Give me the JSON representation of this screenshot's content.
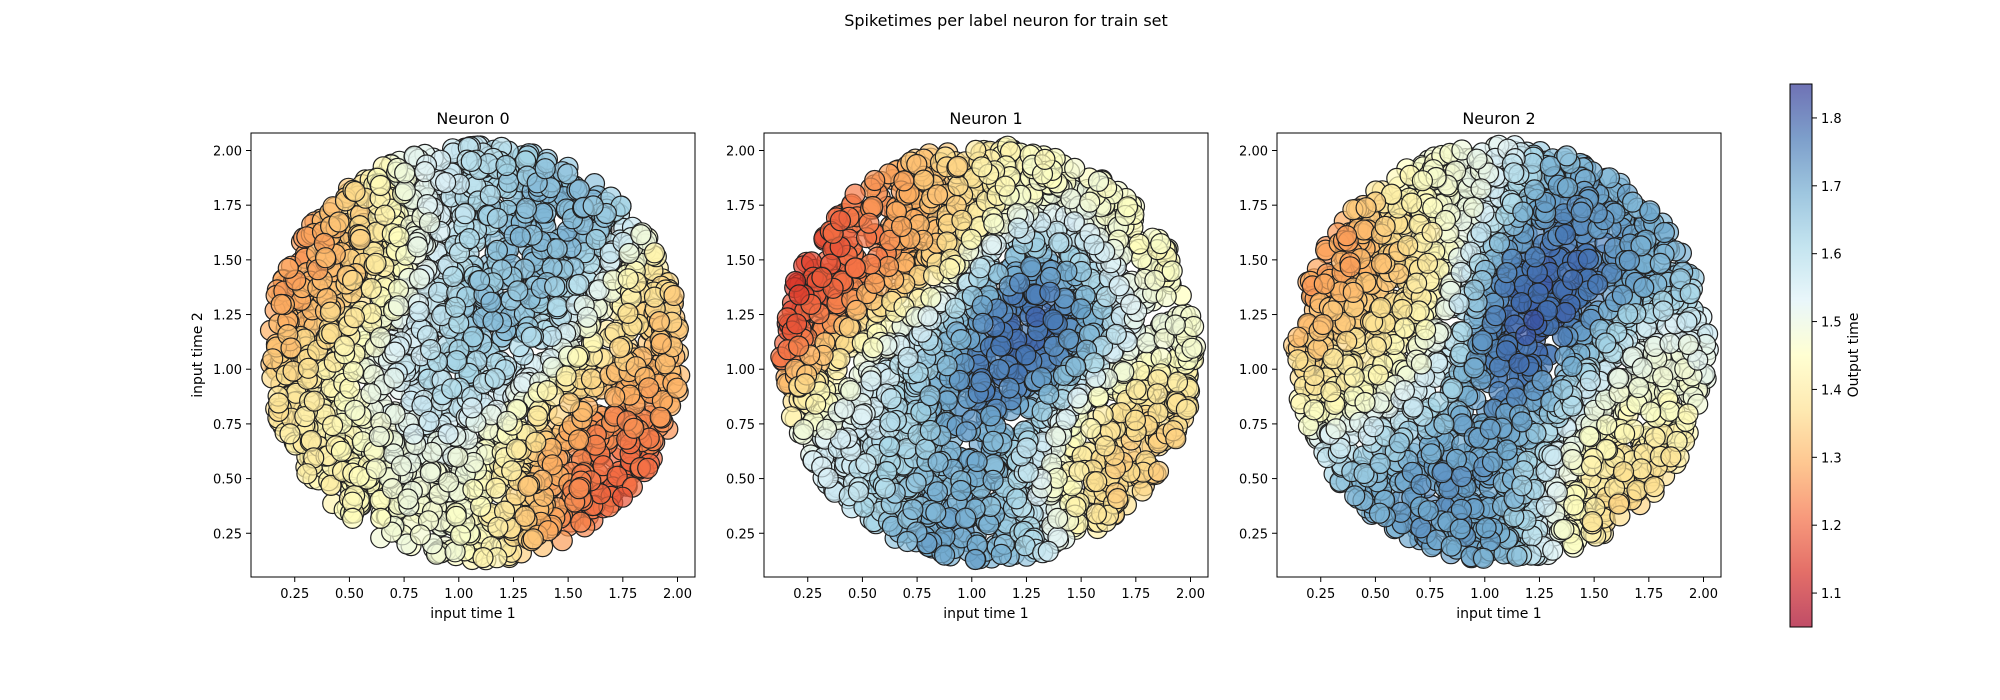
{
  "figure": {
    "title": "Spiketimes per label neuron for train set"
  },
  "colorbar": {
    "label": "Output time",
    "range": [
      1.05,
      1.85
    ],
    "ticks": [
      "1.1",
      "1.2",
      "1.3",
      "1.4",
      "1.5",
      "1.6",
      "1.7",
      "1.8"
    ],
    "tick_values": [
      1.1,
      1.2,
      1.3,
      1.4,
      1.5,
      1.6,
      1.7,
      1.8
    ],
    "colormap": "RdYlBu",
    "alpha": 0.7
  },
  "chart_data": [
    {
      "type": "scatter",
      "title": "Neuron 0",
      "xlabel": "input time 1",
      "ylabel": "input time 2",
      "xlim": [
        0.05,
        2.08
      ],
      "ylim": [
        0.05,
        2.08
      ],
      "xticks": [
        "0.25",
        "0.50",
        "0.75",
        "1.00",
        "1.25",
        "1.50",
        "1.75",
        "2.00"
      ],
      "yticks": [
        "0.25",
        "0.50",
        "0.75",
        "1.00",
        "1.25",
        "1.50",
        "1.75",
        "2.00"
      ],
      "tick_values": [
        0.25,
        0.5,
        0.75,
        1.0,
        1.25,
        1.5,
        1.75,
        2.0
      ],
      "disk": {
        "center": [
          1.075,
          1.075
        ],
        "radius": 0.95
      },
      "n_points": 2200,
      "color_field": {
        "base": 1.6,
        "anchors": [
          {
            "x": 0.4,
            "y": 1.35,
            "value": 1.18,
            "spread": 0.35
          },
          {
            "x": 0.5,
            "y": 0.65,
            "value": 1.35,
            "spread": 0.3
          },
          {
            "x": 1.6,
            "y": 0.45,
            "value": 1.1,
            "spread": 0.33
          },
          {
            "x": 1.8,
            "y": 1.15,
            "value": 1.28,
            "spread": 0.3
          },
          {
            "x": 0.8,
            "y": 1.0,
            "value": 1.74,
            "spread": 0.3
          },
          {
            "x": 1.3,
            "y": 1.3,
            "value": 1.76,
            "spread": 0.25
          },
          {
            "x": 1.45,
            "y": 1.65,
            "value": 1.75,
            "spread": 0.2
          },
          {
            "x": 1.1,
            "y": 1.65,
            "value": 1.58,
            "spread": 0.3
          },
          {
            "x": 1.05,
            "y": 0.45,
            "value": 1.52,
            "spread": 0.3
          }
        ]
      }
    },
    {
      "type": "scatter",
      "title": "Neuron 1",
      "xlabel": "input time 1",
      "ylabel": "",
      "xlim": [
        0.05,
        2.08
      ],
      "ylim": [
        0.05,
        2.08
      ],
      "xticks": [
        "0.25",
        "0.50",
        "0.75",
        "1.00",
        "1.25",
        "1.50",
        "1.75",
        "2.00"
      ],
      "yticks": [
        "0.25",
        "0.50",
        "0.75",
        "1.00",
        "1.25",
        "1.50",
        "1.75",
        "2.00"
      ],
      "tick_values": [
        0.25,
        0.5,
        0.75,
        1.0,
        1.25,
        1.5,
        1.75,
        2.0
      ],
      "disk": {
        "center": [
          1.075,
          1.075
        ],
        "radius": 0.95
      },
      "n_points": 2200,
      "color_field": {
        "base": 1.58,
        "anchors": [
          {
            "x": 0.3,
            "y": 1.4,
            "value": 1.05,
            "spread": 0.35
          },
          {
            "x": 0.75,
            "y": 1.75,
            "value": 1.3,
            "spread": 0.3
          },
          {
            "x": 1.3,
            "y": 1.95,
            "value": 1.45,
            "spread": 0.25
          },
          {
            "x": 1.75,
            "y": 1.55,
            "value": 1.42,
            "spread": 0.22
          },
          {
            "x": 1.1,
            "y": 1.0,
            "value": 1.85,
            "spread": 0.25
          },
          {
            "x": 1.3,
            "y": 1.35,
            "value": 1.85,
            "spread": 0.22
          },
          {
            "x": 0.95,
            "y": 0.3,
            "value": 1.74,
            "spread": 0.3
          },
          {
            "x": 1.65,
            "y": 0.55,
            "value": 1.3,
            "spread": 0.3
          },
          {
            "x": 0.65,
            "y": 1.05,
            "value": 1.68,
            "spread": 0.22
          },
          {
            "x": 0.5,
            "y": 0.6,
            "value": 1.55,
            "spread": 0.25
          }
        ]
      }
    },
    {
      "type": "scatter",
      "title": "Neuron 2",
      "xlabel": "input time 1",
      "ylabel": "",
      "xlim": [
        0.05,
        2.08
      ],
      "ylim": [
        0.05,
        2.08
      ],
      "xticks": [
        "0.25",
        "0.50",
        "0.75",
        "1.00",
        "1.25",
        "1.50",
        "1.75",
        "2.00"
      ],
      "yticks": [
        "0.25",
        "0.50",
        "0.75",
        "1.00",
        "1.25",
        "1.50",
        "1.75",
        "2.00"
      ],
      "tick_values": [
        0.25,
        0.5,
        0.75,
        1.0,
        1.25,
        1.5,
        1.75,
        2.0
      ],
      "disk": {
        "center": [
          1.075,
          1.075
        ],
        "radius": 0.95
      },
      "n_points": 2200,
      "color_field": {
        "base": 1.62,
        "anchors": [
          {
            "x": 0.3,
            "y": 1.45,
            "value": 1.18,
            "spread": 0.32
          },
          {
            "x": 0.55,
            "y": 1.1,
            "value": 1.45,
            "spread": 0.25
          },
          {
            "x": 0.8,
            "y": 1.85,
            "value": 1.48,
            "spread": 0.25
          },
          {
            "x": 1.2,
            "y": 1.1,
            "value": 1.86,
            "spread": 0.22
          },
          {
            "x": 1.35,
            "y": 1.45,
            "value": 1.85,
            "spread": 0.22
          },
          {
            "x": 0.95,
            "y": 0.55,
            "value": 1.74,
            "spread": 0.3
          },
          {
            "x": 1.65,
            "y": 0.95,
            "value": 1.45,
            "spread": 0.23
          },
          {
            "x": 1.6,
            "y": 0.45,
            "value": 1.3,
            "spread": 0.25
          },
          {
            "x": 1.6,
            "y": 1.7,
            "value": 1.68,
            "spread": 0.25
          }
        ]
      }
    }
  ]
}
